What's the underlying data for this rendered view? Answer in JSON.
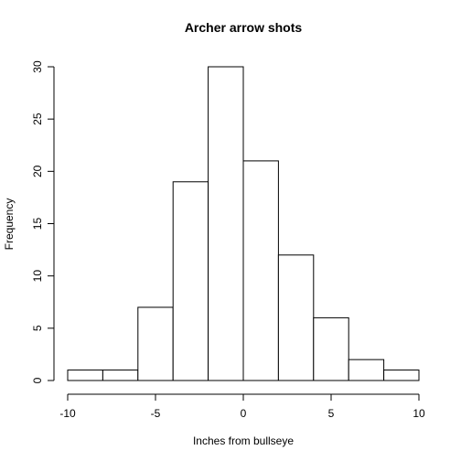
{
  "chart_data": {
    "type": "bar",
    "title": "Archer arrow shots",
    "xlabel": "Inches from bullseye",
    "ylabel": "Frequency",
    "bins": [
      {
        "x0": -10,
        "x1": -8,
        "count": 1
      },
      {
        "x0": -8,
        "x1": -6,
        "count": 1
      },
      {
        "x0": -6,
        "x1": -4,
        "count": 7
      },
      {
        "x0": -4,
        "x1": -2,
        "count": 19
      },
      {
        "x0": -2,
        "x1": 0,
        "count": 30
      },
      {
        "x0": 0,
        "x1": 2,
        "count": 21
      },
      {
        "x0": 2,
        "x1": 4,
        "count": 12
      },
      {
        "x0": 4,
        "x1": 6,
        "count": 6
      },
      {
        "x0": 6,
        "x1": 8,
        "count": 2
      },
      {
        "x0": 8,
        "x1": 10,
        "count": 1
      }
    ],
    "xlim": [
      -10,
      10
    ],
    "ylim": [
      0,
      30
    ],
    "xticks": [
      -10,
      -5,
      0,
      5,
      10
    ],
    "yticks": [
      0,
      5,
      10,
      15,
      20,
      25,
      30
    ],
    "grid": false,
    "bar_fill": "#ffffff",
    "bar_stroke": "#000000"
  }
}
